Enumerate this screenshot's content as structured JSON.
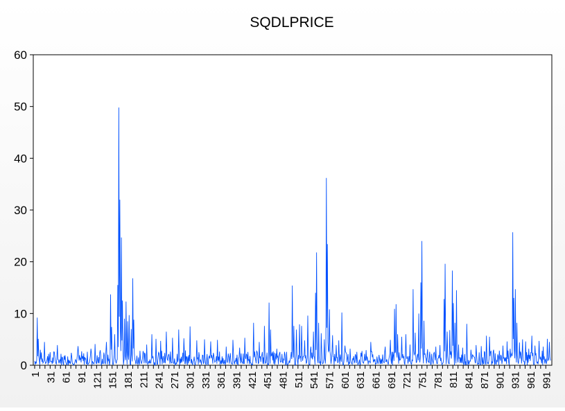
{
  "chart_data": {
    "type": "line",
    "title": "SQDLPRICE",
    "xlabel": "",
    "ylabel": "",
    "x_range": [
      1,
      1000
    ],
    "ylim": [
      0,
      60
    ],
    "y_ticks": [
      0,
      10,
      20,
      30,
      40,
      50,
      60
    ],
    "x_tick_labels": [
      "1",
      "31",
      "61",
      "91",
      "121",
      "151",
      "181",
      "211",
      "241",
      "271",
      "301",
      "331",
      "361",
      "391",
      "421",
      "451",
      "481",
      "511",
      "541",
      "571",
      "601",
      "631",
      "661",
      "691",
      "721",
      "751",
      "781",
      "811",
      "841",
      "871",
      "901",
      "931",
      "961",
      "991"
    ],
    "grid": false,
    "legend": "none",
    "series_color": "#0050ff",
    "baseline_level": 1.2,
    "spikes": [
      {
        "x": 6,
        "y": 9.2
      },
      {
        "x": 8,
        "y": 5.1
      },
      {
        "x": 12,
        "y": 3.0
      },
      {
        "x": 20,
        "y": 4.5
      },
      {
        "x": 28,
        "y": 2.2
      },
      {
        "x": 38,
        "y": 2.6
      },
      {
        "x": 45,
        "y": 3.9
      },
      {
        "x": 58,
        "y": 1.8
      },
      {
        "x": 72,
        "y": 2.4
      },
      {
        "x": 85,
        "y": 3.7
      },
      {
        "x": 98,
        "y": 1.6
      },
      {
        "x": 110,
        "y": 3.2
      },
      {
        "x": 118,
        "y": 4.1
      },
      {
        "x": 128,
        "y": 2.9
      },
      {
        "x": 140,
        "y": 4.5
      },
      {
        "x": 148,
        "y": 13.7
      },
      {
        "x": 150,
        "y": 7.4
      },
      {
        "x": 156,
        "y": 6.0
      },
      {
        "x": 162,
        "y": 15.5
      },
      {
        "x": 164,
        "y": 49.8
      },
      {
        "x": 166,
        "y": 32.0
      },
      {
        "x": 169,
        "y": 24.7
      },
      {
        "x": 171,
        "y": 12.5
      },
      {
        "x": 175,
        "y": 9.0
      },
      {
        "x": 178,
        "y": 12.3
      },
      {
        "x": 181,
        "y": 8.5
      },
      {
        "x": 184,
        "y": 9.7
      },
      {
        "x": 188,
        "y": 7.0
      },
      {
        "x": 191,
        "y": 16.8
      },
      {
        "x": 193,
        "y": 8.8
      },
      {
        "x": 205,
        "y": 2.8
      },
      {
        "x": 218,
        "y": 4.0
      },
      {
        "x": 228,
        "y": 6.0
      },
      {
        "x": 236,
        "y": 5.1
      },
      {
        "x": 245,
        "y": 4.7
      },
      {
        "x": 256,
        "y": 6.5
      },
      {
        "x": 268,
        "y": 5.3
      },
      {
        "x": 280,
        "y": 6.9
      },
      {
        "x": 290,
        "y": 5.2
      },
      {
        "x": 302,
        "y": 7.5
      },
      {
        "x": 315,
        "y": 4.8
      },
      {
        "x": 330,
        "y": 5.0
      },
      {
        "x": 342,
        "y": 4.6
      },
      {
        "x": 355,
        "y": 4.9
      },
      {
        "x": 372,
        "y": 3.6
      },
      {
        "x": 385,
        "y": 4.9
      },
      {
        "x": 398,
        "y": 3.4
      },
      {
        "x": 408,
        "y": 5.3
      },
      {
        "x": 425,
        "y": 8.2
      },
      {
        "x": 436,
        "y": 4.5
      },
      {
        "x": 446,
        "y": 7.6
      },
      {
        "x": 455,
        "y": 12.1
      },
      {
        "x": 458,
        "y": 6.9
      },
      {
        "x": 470,
        "y": 3.2
      },
      {
        "x": 485,
        "y": 2.6
      },
      {
        "x": 500,
        "y": 15.4
      },
      {
        "x": 503,
        "y": 7.6
      },
      {
        "x": 508,
        "y": 6.9
      },
      {
        "x": 514,
        "y": 7.9
      },
      {
        "x": 518,
        "y": 7.6
      },
      {
        "x": 524,
        "y": 4.8
      },
      {
        "x": 530,
        "y": 9.6
      },
      {
        "x": 536,
        "y": 3.6
      },
      {
        "x": 541,
        "y": 6.5
      },
      {
        "x": 545,
        "y": 14.0
      },
      {
        "x": 547,
        "y": 21.8
      },
      {
        "x": 551,
        "y": 8.2
      },
      {
        "x": 556,
        "y": 6.2
      },
      {
        "x": 562,
        "y": 5.0
      },
      {
        "x": 566,
        "y": 36.2
      },
      {
        "x": 568,
        "y": 23.4
      },
      {
        "x": 572,
        "y": 10.8
      },
      {
        "x": 578,
        "y": 5.8
      },
      {
        "x": 585,
        "y": 3.9
      },
      {
        "x": 590,
        "y": 4.8
      },
      {
        "x": 596,
        "y": 10.2
      },
      {
        "x": 602,
        "y": 3.8
      },
      {
        "x": 612,
        "y": 3.2
      },
      {
        "x": 625,
        "y": 2.6
      },
      {
        "x": 640,
        "y": 2.2
      },
      {
        "x": 652,
        "y": 4.5
      },
      {
        "x": 668,
        "y": 2.0
      },
      {
        "x": 680,
        "y": 3.6
      },
      {
        "x": 690,
        "y": 4.9
      },
      {
        "x": 698,
        "y": 10.9
      },
      {
        "x": 701,
        "y": 11.8
      },
      {
        "x": 704,
        "y": 6.0
      },
      {
        "x": 712,
        "y": 5.5
      },
      {
        "x": 720,
        "y": 6.0
      },
      {
        "x": 728,
        "y": 4.0
      },
      {
        "x": 734,
        "y": 14.7
      },
      {
        "x": 738,
        "y": 6.3
      },
      {
        "x": 745,
        "y": 10.0
      },
      {
        "x": 749,
        "y": 16.0
      },
      {
        "x": 751,
        "y": 24.0
      },
      {
        "x": 755,
        "y": 8.6
      },
      {
        "x": 762,
        "y": 3.1
      },
      {
        "x": 770,
        "y": 2.2
      },
      {
        "x": 778,
        "y": 3.6
      },
      {
        "x": 786,
        "y": 3.9
      },
      {
        "x": 794,
        "y": 12.8
      },
      {
        "x": 796,
        "y": 19.6
      },
      {
        "x": 800,
        "y": 6.5
      },
      {
        "x": 805,
        "y": 6.8
      },
      {
        "x": 810,
        "y": 18.3
      },
      {
        "x": 812,
        "y": 12.0
      },
      {
        "x": 815,
        "y": 8.2
      },
      {
        "x": 818,
        "y": 14.5
      },
      {
        "x": 822,
        "y": 4.0
      },
      {
        "x": 830,
        "y": 3.4
      },
      {
        "x": 838,
        "y": 8.0
      },
      {
        "x": 846,
        "y": 3.0
      },
      {
        "x": 856,
        "y": 3.9
      },
      {
        "x": 866,
        "y": 3.7
      },
      {
        "x": 876,
        "y": 5.7
      },
      {
        "x": 882,
        "y": 5.5
      },
      {
        "x": 890,
        "y": 3.0
      },
      {
        "x": 898,
        "y": 2.1
      },
      {
        "x": 908,
        "y": 3.8
      },
      {
        "x": 916,
        "y": 4.6
      },
      {
        "x": 922,
        "y": 3.2
      },
      {
        "x": 927,
        "y": 25.7
      },
      {
        "x": 929,
        "y": 13.0
      },
      {
        "x": 932,
        "y": 14.7
      },
      {
        "x": 935,
        "y": 8.2
      },
      {
        "x": 940,
        "y": 4.4
      },
      {
        "x": 946,
        "y": 5.0
      },
      {
        "x": 952,
        "y": 4.6
      },
      {
        "x": 958,
        "y": 3.2
      },
      {
        "x": 964,
        "y": 5.7
      },
      {
        "x": 970,
        "y": 3.8
      },
      {
        "x": 978,
        "y": 4.7
      },
      {
        "x": 986,
        "y": 3.6
      },
      {
        "x": 994,
        "y": 5.1
      },
      {
        "x": 998,
        "y": 4.5
      }
    ]
  }
}
